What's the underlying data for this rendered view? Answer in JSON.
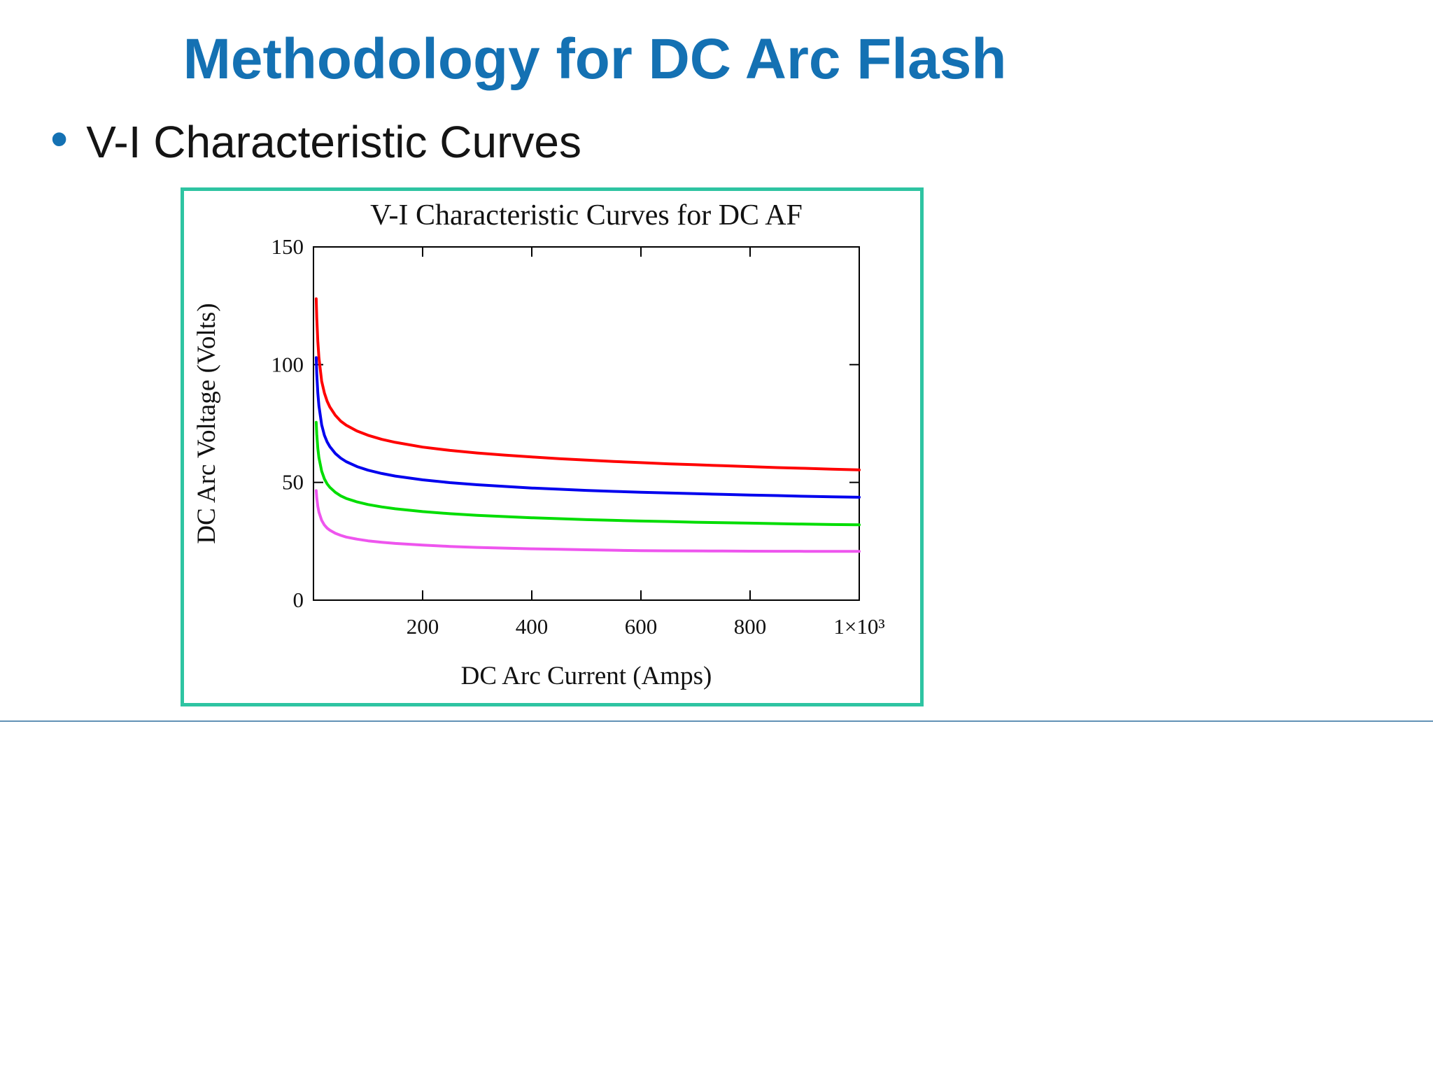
{
  "slide": {
    "title": "Methodology for DC Arc Flash",
    "bullet": "V-I Characteristic Curves"
  },
  "colors": {
    "title_blue": "#1471b3",
    "accent_teal": "#2ec4a2",
    "divider_blue": "#6291b5",
    "axis_black": "#000000"
  },
  "chart_data": {
    "type": "line",
    "title": "V-I Characteristic Curves for DC AF",
    "xlabel": "DC Arc Current (Amps)",
    "ylabel": "DC Arc Voltage (Volts)",
    "xlim": [
      0,
      1000
    ],
    "ylim": [
      0,
      150
    ],
    "grid": false,
    "legend": "none",
    "x_ticks": [
      {
        "value": 200,
        "label": "200"
      },
      {
        "value": 400,
        "label": "400"
      },
      {
        "value": 600,
        "label": "600"
      },
      {
        "value": 800,
        "label": "800"
      },
      {
        "value": 1000,
        "label": "1×10³"
      }
    ],
    "y_ticks": [
      {
        "value": 0,
        "label": "0"
      },
      {
        "value": 50,
        "label": "50"
      },
      {
        "value": 100,
        "label": "100"
      },
      {
        "value": 150,
        "label": "150"
      }
    ],
    "x": [
      5,
      6,
      8,
      10,
      15,
      20,
      25,
      30,
      40,
      50,
      60,
      80,
      100,
      125,
      150,
      200,
      250,
      300,
      350,
      400,
      450,
      500,
      550,
      600,
      650,
      700,
      750,
      800,
      850,
      900,
      950,
      1000
    ],
    "series": [
      {
        "name": "red-curve",
        "color": "#ff0000",
        "values": [
          128,
          120,
          110,
          103,
          93,
          88,
          84.5,
          82,
          78.5,
          76,
          74.3,
          71.8,
          70,
          68.3,
          67,
          65,
          63.6,
          62.5,
          61.6,
          60.8,
          60.1,
          59.5,
          58.9,
          58.4,
          57.9,
          57.5,
          57.1,
          56.7,
          56.3,
          56,
          55.6,
          55.3
        ]
      },
      {
        "name": "blue-curve",
        "color": "#0000ee",
        "values": [
          103,
          96,
          88,
          82.5,
          74.5,
          70,
          67.2,
          65.2,
          62.3,
          60.3,
          58.8,
          56.7,
          55.2,
          53.8,
          52.7,
          51.1,
          49.9,
          49,
          48.3,
          47.6,
          47.1,
          46.6,
          46.2,
          45.8,
          45.5,
          45.2,
          44.9,
          44.6,
          44.4,
          44.1,
          43.9,
          43.7
        ]
      },
      {
        "name": "green-curve",
        "color": "#00dd00",
        "values": [
          75.5,
          70.5,
          64.5,
          60.5,
          54.8,
          51.5,
          49.4,
          47.9,
          45.8,
          44.3,
          43.2,
          41.7,
          40.6,
          39.6,
          38.8,
          37.6,
          36.7,
          36,
          35.5,
          35,
          34.6,
          34.2,
          33.9,
          33.6,
          33.4,
          33.1,
          32.9,
          32.7,
          32.5,
          32.3,
          32.1,
          32
        ]
      },
      {
        "name": "magenta-curve",
        "color": "#ee55ee",
        "values": [
          46.5,
          43.5,
          39.8,
          37.4,
          33.9,
          31.9,
          30.6,
          29.7,
          28.4,
          27.5,
          26.8,
          25.9,
          25.2,
          24.6,
          24.1,
          23.4,
          22.8,
          22.4,
          22.1,
          21.8,
          21.6,
          21.4,
          21.2,
          21,
          20.95,
          20.9,
          20.85,
          20.8,
          20.77,
          20.74,
          20.72,
          20.7
        ]
      }
    ]
  }
}
